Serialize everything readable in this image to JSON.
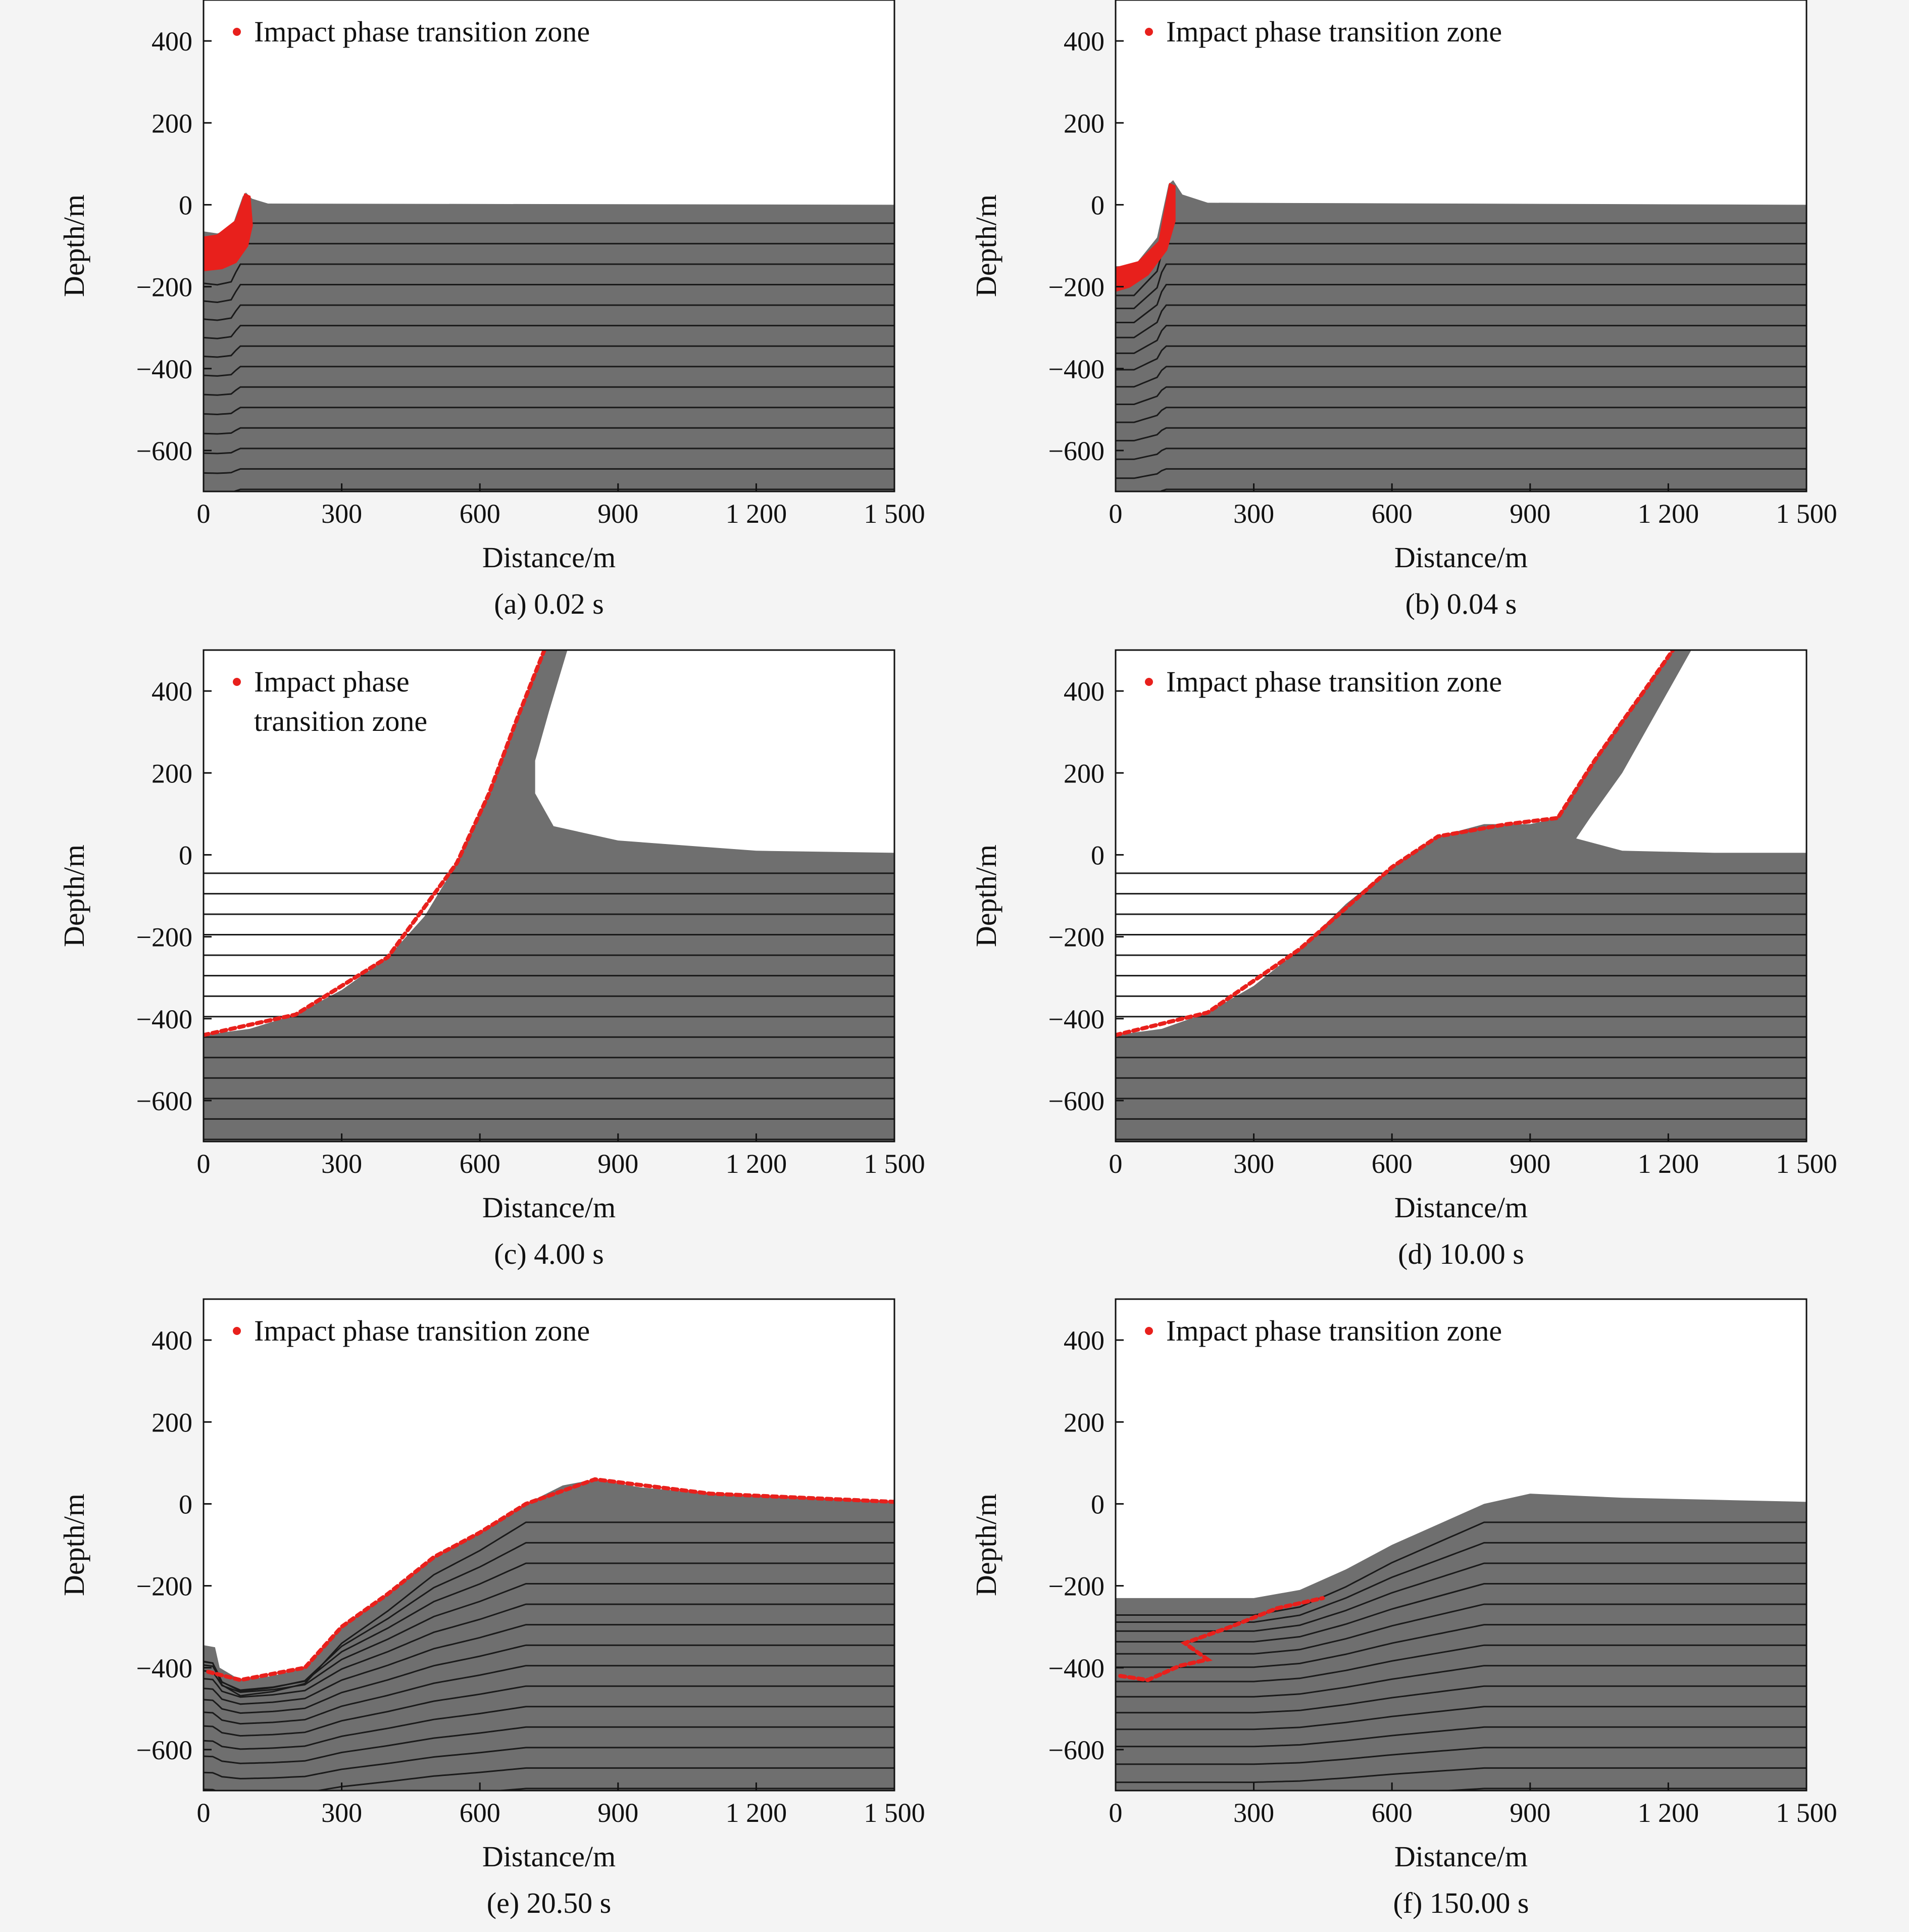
{
  "figure": {
    "background_color": "#f4f4f4",
    "material_color": "#6f6f6f",
    "layer_line_color": "#1a1a1a",
    "impact_zone_color": "#e8201c"
  },
  "chart_data": [
    {
      "type": "area",
      "caption": "(a) 0.02 s",
      "xlabel": "Distance/m",
      "ylabel": "Depth/m",
      "xlim": [
        0,
        1500
      ],
      "ylim": [
        -700,
        500
      ],
      "xticks": [
        0,
        300,
        600,
        900,
        1200,
        1500
      ],
      "xtick_labels": [
        "0",
        "300",
        "600",
        "900",
        "1 200",
        "1 500"
      ],
      "yticks": [
        400,
        200,
        0,
        -200,
        -400,
        -600
      ],
      "ytick_labels": [
        "400",
        "200",
        "0",
        "−200",
        "−400",
        "−600"
      ],
      "legend": {
        "label": "Impact phase transition zone",
        "position": "top-left"
      },
      "surface": [
        [
          0,
          -65
        ],
        [
          30,
          -70
        ],
        [
          60,
          -60
        ],
        [
          85,
          20
        ],
        [
          92,
          30
        ],
        [
          105,
          15
        ],
        [
          140,
          3
        ],
        [
          1500,
          0
        ]
      ],
      "layers": [
        -45,
        -95,
        -145,
        -195,
        -245,
        -295,
        -345,
        -395,
        -445,
        -495,
        -545,
        -595,
        -645,
        -695
      ],
      "impact_zone": [
        [
          0,
          -80
        ],
        [
          30,
          -75
        ],
        [
          70,
          -40
        ],
        [
          90,
          25
        ],
        [
          100,
          20
        ],
        [
          105,
          -50
        ],
        [
          95,
          -100
        ],
        [
          70,
          -140
        ],
        [
          40,
          -155
        ],
        [
          0,
          -160
        ]
      ]
    },
    {
      "type": "area",
      "caption": "(b) 0.04 s",
      "xlabel": "Distance/m",
      "ylabel": "Depth/m",
      "xlim": [
        0,
        1500
      ],
      "ylim": [
        -700,
        500
      ],
      "xticks": [
        0,
        300,
        600,
        900,
        1200,
        1500
      ],
      "xtick_labels": [
        "0",
        "300",
        "600",
        "900",
        "1 200",
        "1 500"
      ],
      "yticks": [
        400,
        200,
        0,
        -200,
        -400,
        -600
      ],
      "ytick_labels": [
        "400",
        "200",
        "0",
        "−200",
        "−400",
        "−600"
      ],
      "legend": {
        "label": "Impact phase transition zone",
        "position": "top-left"
      },
      "surface": [
        [
          0,
          -150
        ],
        [
          40,
          -150
        ],
        [
          90,
          -80
        ],
        [
          115,
          50
        ],
        [
          125,
          60
        ],
        [
          145,
          25
        ],
        [
          200,
          5
        ],
        [
          1500,
          0
        ]
      ],
      "layers": [
        -45,
        -95,
        -145,
        -195,
        -245,
        -295,
        -345,
        -395,
        -445,
        -495,
        -545,
        -595,
        -645,
        -695
      ],
      "impact_zone": [
        [
          0,
          -155
        ],
        [
          50,
          -140
        ],
        [
          95,
          -90
        ],
        [
          118,
          50
        ],
        [
          128,
          45
        ],
        [
          128,
          -40
        ],
        [
          110,
          -110
        ],
        [
          70,
          -170
        ],
        [
          30,
          -200
        ],
        [
          0,
          -210
        ]
      ]
    },
    {
      "type": "area",
      "caption": "(c) 4.00 s",
      "xlabel": "Distance/m",
      "ylabel": "Depth/m",
      "xlim": [
        0,
        1500
      ],
      "ylim": [
        -700,
        500
      ],
      "xticks": [
        0,
        300,
        600,
        900,
        1200,
        1500
      ],
      "xtick_labels": [
        "0",
        "300",
        "600",
        "900",
        "1 200",
        "1 500"
      ],
      "yticks": [
        400,
        200,
        0,
        -200,
        -400,
        -600
      ],
      "ytick_labels": [
        "400",
        "200",
        "0",
        "−200",
        "−400",
        "−600"
      ],
      "legend": {
        "label": "Impact phase transition zone",
        "position": "top-left"
      },
      "surface": [
        [
          0,
          -440
        ],
        [
          100,
          -425
        ],
        [
          200,
          -390
        ],
        [
          300,
          -330
        ],
        [
          400,
          -250
        ],
        [
          480,
          -150
        ],
        [
          550,
          -20
        ],
        [
          620,
          150
        ],
        [
          680,
          330
        ],
        [
          740,
          500
        ],
        [
          790,
          500
        ],
        [
          750,
          350
        ],
        [
          720,
          230
        ],
        [
          720,
          150
        ],
        [
          760,
          70
        ],
        [
          900,
          35
        ],
        [
          1200,
          10
        ],
        [
          1500,
          5
        ]
      ],
      "layers": [
        -45,
        -95,
        -145,
        -195,
        -245,
        -295,
        -345,
        -395,
        -445,
        -495,
        -545,
        -595,
        -645,
        -695
      ],
      "impact_zone": [
        [
          0,
          -440
        ],
        [
          200,
          -390
        ],
        [
          400,
          -250
        ],
        [
          550,
          -20
        ],
        [
          620,
          150
        ],
        [
          680,
          330
        ],
        [
          740,
          500
        ]
      ]
    },
    {
      "type": "area",
      "caption": "(d) 10.00 s",
      "xlabel": "Distance/m",
      "ylabel": "Depth/m",
      "xlim": [
        0,
        1500
      ],
      "ylim": [
        -700,
        500
      ],
      "xticks": [
        0,
        300,
        600,
        900,
        1200,
        1500
      ],
      "xtick_labels": [
        "0",
        "300",
        "600",
        "900",
        "1 200",
        "1 500"
      ],
      "yticks": [
        400,
        200,
        0,
        -200,
        -400,
        -600
      ],
      "ytick_labels": [
        "400",
        "200",
        "0",
        "−200",
        "−400",
        "−600"
      ],
      "legend": {
        "label": "Impact phase transition zone",
        "position": "top-left"
      },
      "surface": [
        [
          0,
          -440
        ],
        [
          100,
          -425
        ],
        [
          200,
          -385
        ],
        [
          300,
          -320
        ],
        [
          400,
          -230
        ],
        [
          500,
          -120
        ],
        [
          600,
          -30
        ],
        [
          700,
          45
        ],
        [
          800,
          75
        ],
        [
          900,
          75
        ],
        [
          960,
          90
        ],
        [
          1040,
          230
        ],
        [
          1160,
          420
        ],
        [
          1210,
          500
        ],
        [
          1250,
          500
        ],
        [
          1180,
          360
        ],
        [
          1100,
          200
        ],
        [
          1030,
          90
        ],
        [
          1000,
          40
        ],
        [
          1100,
          10
        ],
        [
          1300,
          5
        ],
        [
          1500,
          5
        ]
      ],
      "layers": [
        -45,
        -95,
        -145,
        -195,
        -245,
        -295,
        -345,
        -395,
        -445,
        -495,
        -545,
        -595,
        -645,
        -695
      ],
      "impact_zone": [
        [
          0,
          -440
        ],
        [
          200,
          -385
        ],
        [
          400,
          -230
        ],
        [
          600,
          -30
        ],
        [
          700,
          45
        ],
        [
          850,
          75
        ],
        [
          960,
          90
        ],
        [
          1040,
          230
        ],
        [
          1160,
          420
        ],
        [
          1210,
          500
        ]
      ]
    },
    {
      "type": "area",
      "caption": "(e) 20.50 s",
      "xlabel": "Distance/m",
      "ylabel": "Depth/m",
      "xlim": [
        0,
        1500
      ],
      "ylim": [
        -700,
        500
      ],
      "xticks": [
        0,
        300,
        600,
        900,
        1200,
        1500
      ],
      "xtick_labels": [
        "0",
        "300",
        "600",
        "900",
        "1 200",
        "1 500"
      ],
      "yticks": [
        400,
        200,
        0,
        -200,
        -400,
        -600
      ],
      "ytick_labels": [
        "400",
        "200",
        "0",
        "−200",
        "−400",
        "−600"
      ],
      "legend": {
        "label": "Impact phase transition zone",
        "position": "top-left"
      },
      "surface": [
        [
          0,
          -345
        ],
        [
          25,
          -350
        ],
        [
          35,
          -400
        ],
        [
          80,
          -430
        ],
        [
          150,
          -420
        ],
        [
          220,
          -400
        ],
        [
          300,
          -300
        ],
        [
          400,
          -220
        ],
        [
          500,
          -130
        ],
        [
          600,
          -70
        ],
        [
          700,
          0
        ],
        [
          780,
          45
        ],
        [
          850,
          60
        ],
        [
          950,
          40
        ],
        [
          1100,
          25
        ],
        [
          1300,
          15
        ],
        [
          1500,
          5
        ]
      ],
      "layers": [
        -45,
        -95,
        -145,
        -195,
        -245,
        -295,
        -345,
        -395,
        -445,
        -495,
        -545,
        -595,
        -645,
        -695
      ],
      "impact_zone": [
        [
          10,
          -410
        ],
        [
          80,
          -430
        ],
        [
          220,
          -400
        ],
        [
          300,
          -300
        ],
        [
          400,
          -220
        ],
        [
          500,
          -130
        ],
        [
          600,
          -70
        ],
        [
          700,
          0
        ],
        [
          850,
          60
        ],
        [
          1100,
          25
        ],
        [
          1500,
          5
        ]
      ]
    },
    {
      "type": "area",
      "caption": "(f) 150.00 s",
      "xlabel": "Distance/m",
      "ylabel": "Depth/m",
      "xlim": [
        0,
        1500
      ],
      "ylim": [
        -700,
        500
      ],
      "xticks": [
        0,
        300,
        600,
        900,
        1200,
        1500
      ],
      "xtick_labels": [
        "0",
        "300",
        "600",
        "900",
        "1 200",
        "1 500"
      ],
      "yticks": [
        400,
        200,
        0,
        -200,
        -400,
        -600
      ],
      "ytick_labels": [
        "400",
        "200",
        "0",
        "−200",
        "−400",
        "−600"
      ],
      "legend": {
        "label": "Impact phase transition zone",
        "position": "top-left"
      },
      "surface": [
        [
          0,
          -230
        ],
        [
          300,
          -230
        ],
        [
          400,
          -210
        ],
        [
          500,
          -160
        ],
        [
          600,
          -100
        ],
        [
          700,
          -50
        ],
        [
          800,
          0
        ],
        [
          900,
          25
        ],
        [
          1100,
          15
        ],
        [
          1300,
          10
        ],
        [
          1500,
          5
        ]
      ],
      "layers": [
        -45,
        -95,
        -145,
        -195,
        -245,
        -295,
        -345,
        -395,
        -445,
        -495,
        -545,
        -595,
        -645,
        -695
      ],
      "impact_zone": [
        [
          10,
          -420
        ],
        [
          70,
          -430
        ],
        [
          140,
          -395
        ],
        [
          200,
          -380
        ],
        [
          150,
          -340
        ],
        [
          250,
          -300
        ],
        [
          350,
          -255
        ],
        [
          450,
          -230
        ]
      ]
    }
  ]
}
